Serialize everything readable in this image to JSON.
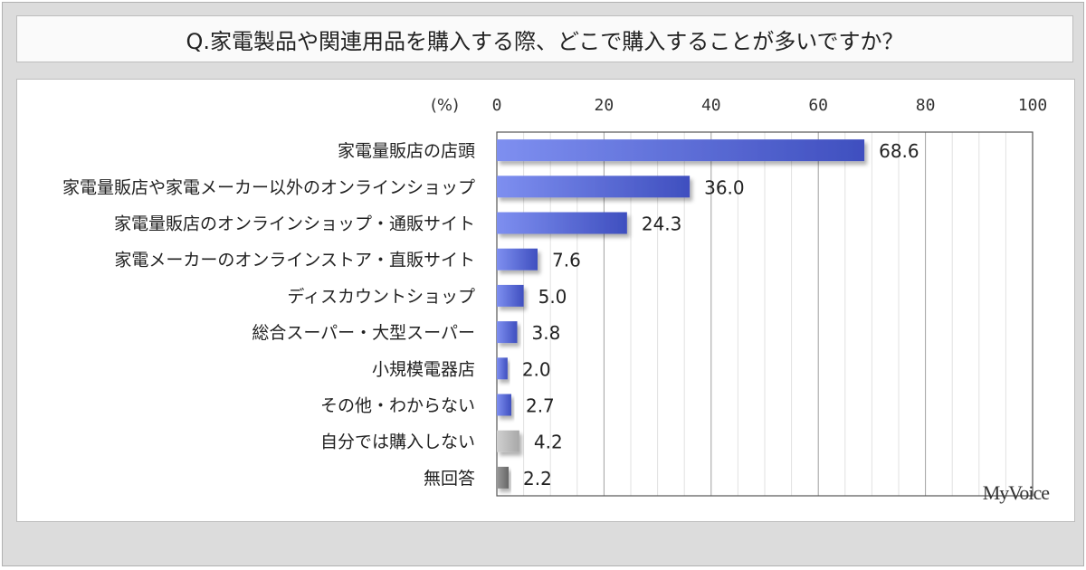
{
  "chart_data": {
    "type": "bar",
    "orientation": "horizontal",
    "title": "Q.家電製品や関連用品を購入する際、どこで購入することが多いですか？",
    "xlabel": "(%)",
    "xlim": [
      0,
      100
    ],
    "xticks": [
      "0",
      "20",
      "40",
      "60",
      "80",
      "100"
    ],
    "grid": true,
    "categories": [
      "家電量販店の店頭",
      "家電量販店や家電メーカー以外のオンラインショップ",
      "家電量販店のオンラインショップ・通販サイト",
      "家電メーカーのオンラインストア・直販サイト",
      "ディスカウントショップ",
      "総合スーパー・大型スーパー",
      "小規模電器店",
      "その他・わからない",
      "自分では購入しない",
      "無回答"
    ],
    "values": [
      68.6,
      36.0,
      24.3,
      7.6,
      5.0,
      3.8,
      2.0,
      2.7,
      4.2,
      2.2
    ],
    "labels": [
      "68.6",
      "36.0",
      "24.3",
      "7.6",
      "5.0",
      "3.8",
      "2.0",
      "2.7",
      "4.2",
      "2.2"
    ],
    "colors": [
      "#4f5fcf",
      "#4f5fcf",
      "#4f5fcf",
      "#4f5fcf",
      "#4f5fcf",
      "#4f5fcf",
      "#4f5fcf",
      "#4f5fcf",
      "#b0b0b0",
      "#808080"
    ]
  },
  "logo": "MyVoice"
}
